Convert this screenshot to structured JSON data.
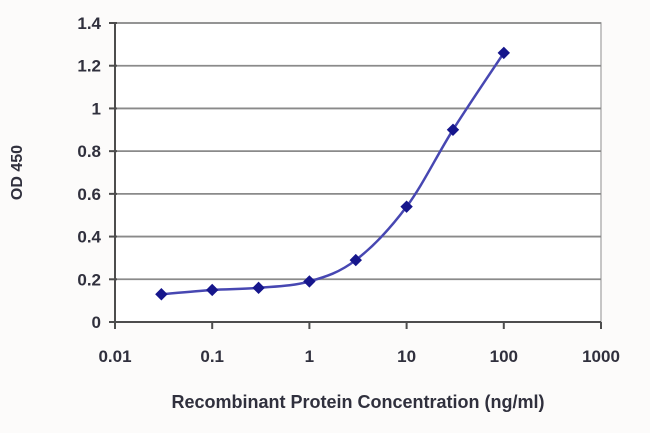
{
  "chart_data": {
    "type": "line",
    "title": "",
    "xlabel": "Recombinant Protein Concentration (ng/ml)",
    "ylabel": "OD 450",
    "x_scale": "log",
    "xlim": [
      0.01,
      1000
    ],
    "ylim": [
      0,
      1.4
    ],
    "x_ticks": [
      0.01,
      0.1,
      1,
      10,
      100,
      1000
    ],
    "x_tick_labels": [
      "0.01",
      "0.1",
      "1",
      "10",
      "100",
      "1000"
    ],
    "y_ticks": [
      0,
      0.2,
      0.4,
      0.6,
      0.8,
      1.0,
      1.2,
      1.4
    ],
    "y_tick_labels": [
      "0",
      "0.2",
      "0.4",
      "0.6",
      "0.8",
      "1",
      "1.2",
      "1.4"
    ],
    "grid": "horizontal",
    "legend": "none",
    "x": [
      0.03,
      0.1,
      0.3,
      1,
      3,
      10,
      30,
      100
    ],
    "series": [
      {
        "name": "OD 450",
        "marker": "diamond",
        "values": [
          0.13,
          0.15,
          0.16,
          0.19,
          0.29,
          0.54,
          0.9,
          1.26
        ]
      }
    ],
    "colors": {
      "line": "#4747b2",
      "marker": "#16168c",
      "grid": "#8a8a8a",
      "axis": "#4d4d4d",
      "plot_border": "#b3b3b3",
      "text": "#30303d",
      "background": "#fcfbfa",
      "plot_background": "#ffffff"
    }
  }
}
